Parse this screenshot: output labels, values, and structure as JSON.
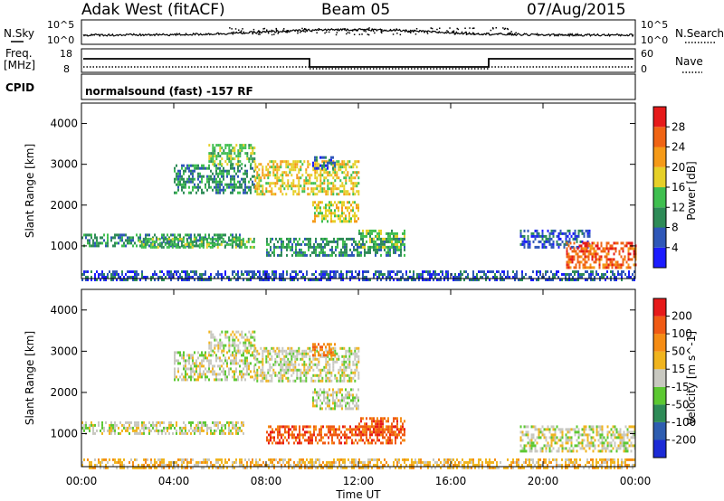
{
  "header": {
    "station": "Adak West (fitACF)",
    "beam": "Beam 05",
    "date": "07/Aug/2015"
  },
  "top_panels": {
    "nsky_label": "N.Sky",
    "nsky_ticks": [
      "10^5",
      "10^0"
    ],
    "nsearch_label": "N.Search",
    "nsearch_ticks": [
      "10^5",
      "10^0"
    ],
    "freq_label": "Freq.",
    "freq_unit": "[MHz]",
    "freq_ticks": [
      "18",
      "8"
    ],
    "nave_label": "Nave",
    "nave_ticks": [
      "60",
      "0"
    ],
    "cpid_label": "CPID",
    "cpid_text": "normalsound (fast) -157 RF"
  },
  "chart_data": [
    {
      "type": "heatmap",
      "panel": "power",
      "ylabel": "Slant Range [km]",
      "xlabel": "Time UT",
      "ylim": [
        200,
        4500
      ],
      "y_ticks": [
        "1000",
        "2000",
        "3000",
        "4000"
      ],
      "x_ticks": [
        "00:00",
        "04:00",
        "08:00",
        "12:00",
        "16:00",
        "20:00",
        "00:00"
      ],
      "colorbar": {
        "label": "Power [dB]",
        "ticks": [
          "4",
          "8",
          "12",
          "16",
          "20",
          "24",
          "28"
        ],
        "colors": [
          "#1c1cff",
          "#2f57b8",
          "#2e8b57",
          "#3fbf4f",
          "#e6d028",
          "#f59a18",
          "#f06414",
          "#e61a1a"
        ]
      },
      "echo_bands": [
        {
          "t0": 0.0,
          "t1": 7.0,
          "r0": 1000,
          "r1": 1300,
          "level": 2
        },
        {
          "t0": 2.5,
          "t1": 7.5,
          "r0": 1000,
          "r1": 1200,
          "level": 3
        },
        {
          "t0": 4.0,
          "t1": 7.5,
          "r0": 2300,
          "r1": 3000,
          "level": 2
        },
        {
          "t0": 5.5,
          "t1": 7.5,
          "r0": 3000,
          "r1": 3500,
          "level": 3
        },
        {
          "t0": 7.5,
          "t1": 12.0,
          "r0": 2300,
          "r1": 3100,
          "level": 4
        },
        {
          "t0": 8.0,
          "t1": 14.0,
          "r0": 800,
          "r1": 1200,
          "level": 2
        },
        {
          "t0": 10.0,
          "t1": 12.0,
          "r0": 1600,
          "r1": 2100,
          "level": 4
        },
        {
          "t0": 10.0,
          "t1": 11.0,
          "r0": 2900,
          "r1": 3200,
          "level": 1
        },
        {
          "t0": 12.0,
          "t1": 14.0,
          "r0": 1000,
          "r1": 1400,
          "level": 3
        },
        {
          "t0": 19.0,
          "t1": 22.0,
          "r0": 1000,
          "r1": 1400,
          "level": 1
        },
        {
          "t0": 21.0,
          "t1": 24.0,
          "r0": 500,
          "r1": 1100,
          "level": 6
        },
        {
          "t0": 0.0,
          "t1": 24.0,
          "r0": 200,
          "r1": 400,
          "level": 1
        }
      ]
    },
    {
      "type": "heatmap",
      "panel": "velocity",
      "ylabel": "Slant Range [km]",
      "xlabel": "Time UT",
      "ylim": [
        200,
        4500
      ],
      "y_ticks": [
        "1000",
        "2000",
        "3000",
        "4000"
      ],
      "x_ticks": [
        "00:00",
        "04:00",
        "08:00",
        "12:00",
        "16:00",
        "20:00",
        "00:00"
      ],
      "colorbar": {
        "label": "Velocity [m s^-1]",
        "ticks": [
          "200",
          "100",
          "50",
          "15",
          "-15",
          "-50",
          "-100",
          "-200"
        ],
        "colors": [
          "#1c2bd6",
          "#2e5db0",
          "#2e8b57",
          "#5cc832",
          "#c8c8c0",
          "#f0b41e",
          "#f58c14",
          "#f05a14",
          "#e61a1a"
        ]
      },
      "echo_bands": [
        {
          "t0": 0.0,
          "t1": 7.0,
          "r0": 1000,
          "r1": 1300,
          "level": 4
        },
        {
          "t0": 4.0,
          "t1": 7.5,
          "r0": 2300,
          "r1": 3000,
          "level": 4
        },
        {
          "t0": 5.5,
          "t1": 7.5,
          "r0": 3000,
          "r1": 3500,
          "level": 4
        },
        {
          "t0": 7.5,
          "t1": 12.0,
          "r0": 2300,
          "r1": 3100,
          "level": 4
        },
        {
          "t0": 8.0,
          "t1": 14.0,
          "r0": 800,
          "r1": 1200,
          "level": 7
        },
        {
          "t0": 10.0,
          "t1": 12.0,
          "r0": 1600,
          "r1": 2100,
          "level": 4
        },
        {
          "t0": 10.0,
          "t1": 11.0,
          "r0": 2900,
          "r1": 3200,
          "level": 6
        },
        {
          "t0": 12.0,
          "t1": 14.0,
          "r0": 1000,
          "r1": 1400,
          "level": 7
        },
        {
          "t0": 19.0,
          "t1": 24.0,
          "r0": 600,
          "r1": 1200,
          "level": 4
        },
        {
          "t0": 0.0,
          "t1": 24.0,
          "r0": 200,
          "r1": 400,
          "level": 5
        }
      ]
    }
  ]
}
